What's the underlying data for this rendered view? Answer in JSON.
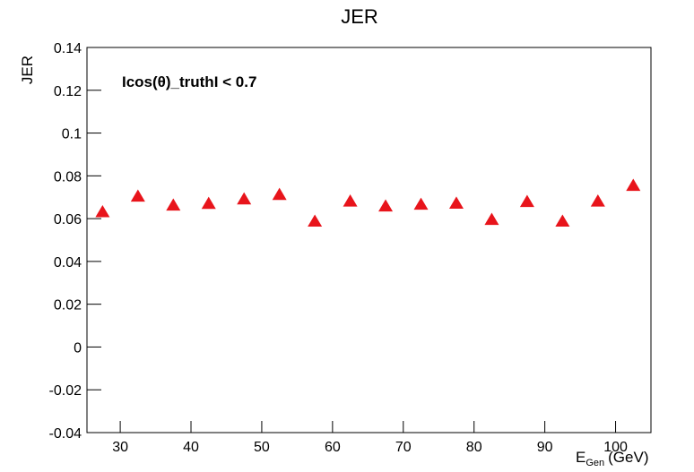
{
  "chart_data": {
    "type": "scatter",
    "title": "JER",
    "y_label": "JER",
    "x_label": {
      "base": "E",
      "sub": "Gen",
      "unit": "(GeV)"
    },
    "annotation": "Icos(θ)_truthI < 0.7",
    "marker": "triangle",
    "color": "#e8141b",
    "x": [
      27.5,
      32.5,
      37.5,
      42.5,
      47.5,
      52.5,
      57.5,
      62.5,
      67.5,
      72.5,
      77.5,
      82.5,
      87.5,
      92.5,
      97.5,
      102.5
    ],
    "y": [
      0.063,
      0.0703,
      0.0661,
      0.0669,
      0.069,
      0.0711,
      0.0586,
      0.068,
      0.0657,
      0.0665,
      0.067,
      0.0594,
      0.0678,
      0.0586,
      0.068,
      0.0753
    ],
    "xlim": [
      25.3,
      105
    ],
    "ylim": [
      -0.04,
      0.14
    ],
    "xticks": [
      30,
      40,
      50,
      60,
      70,
      80,
      90,
      100
    ],
    "yticks": [
      -0.04,
      -0.02,
      0,
      0.02,
      0.04,
      0.06,
      0.08,
      0.1,
      0.12,
      0.14
    ]
  }
}
